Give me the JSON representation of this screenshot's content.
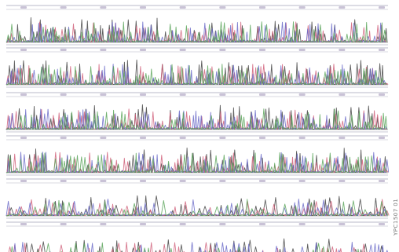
{
  "figure": {
    "side_label": "YPC1507 01",
    "trace_colors": {
      "A": "#5aa55a",
      "C": "#6a6ac8",
      "G": "#444444",
      "T": "#d0607a"
    },
    "rows": 6,
    "ticks_per_row": 10
  }
}
